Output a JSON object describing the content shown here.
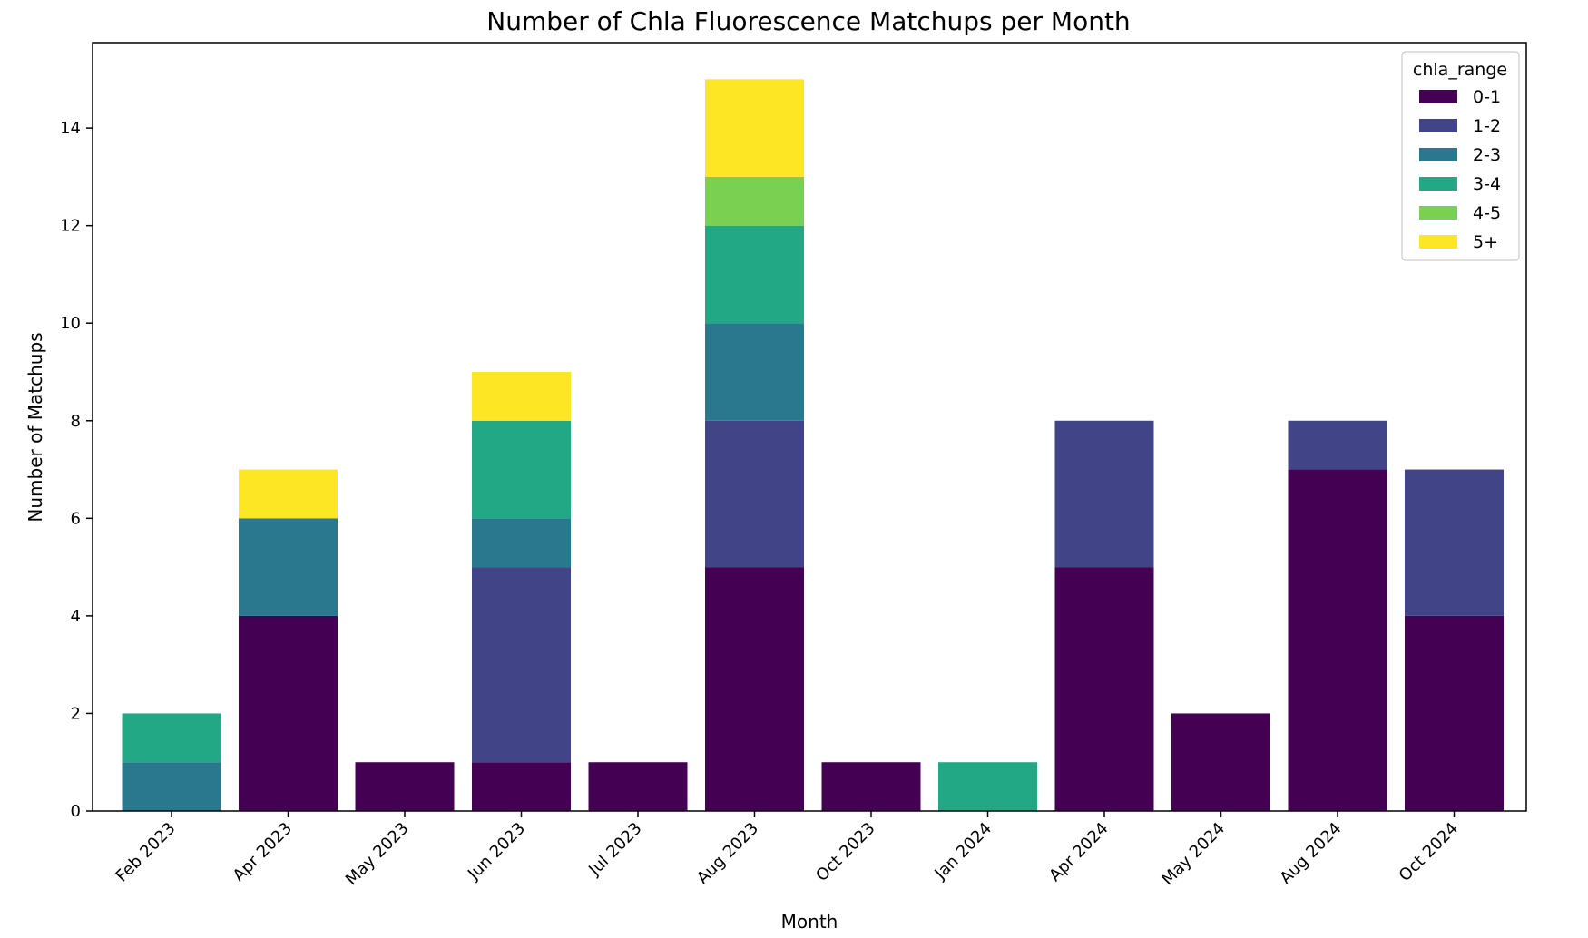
{
  "chart_data": {
    "type": "bar",
    "stacked": true,
    "title": "Number of Chla Fluorescence Matchups per Month",
    "xlabel": "Month",
    "ylabel": "Number of Matchups",
    "ylim": [
      0,
      15.75
    ],
    "yticks": [
      0,
      2,
      4,
      6,
      8,
      10,
      12,
      14
    ],
    "grid": false,
    "legend": {
      "title": "chla_range",
      "placement": "top-right"
    },
    "categories": [
      "Feb 2023",
      "Apr 2023",
      "May 2023",
      "Jun 2023",
      "Jul 2023",
      "Aug 2023",
      "Oct 2023",
      "Jan 2024",
      "Apr 2024",
      "May 2024",
      "Aug 2024",
      "Oct 2024"
    ],
    "series": [
      {
        "name": "0-1",
        "color": "#440154",
        "values": [
          0,
          4,
          1,
          1,
          1,
          5,
          1,
          0,
          5,
          2,
          7,
          4
        ]
      },
      {
        "name": "1-2",
        "color": "#414487",
        "values": [
          0,
          0,
          0,
          4,
          0,
          3,
          0,
          0,
          3,
          0,
          1,
          3
        ]
      },
      {
        "name": "2-3",
        "color": "#2a788e",
        "values": [
          1,
          2,
          0,
          1,
          0,
          2,
          0,
          0,
          0,
          0,
          0,
          0
        ]
      },
      {
        "name": "3-4",
        "color": "#22a884",
        "values": [
          1,
          0,
          0,
          2,
          0,
          2,
          0,
          1,
          0,
          0,
          0,
          0
        ]
      },
      {
        "name": "4-5",
        "color": "#7ad151",
        "values": [
          0,
          0,
          0,
          0,
          0,
          1,
          0,
          0,
          0,
          0,
          0,
          0
        ]
      },
      {
        "name": "5+",
        "color": "#fde725",
        "values": [
          0,
          1,
          0,
          1,
          0,
          2,
          0,
          0,
          0,
          0,
          0,
          0
        ]
      }
    ]
  }
}
